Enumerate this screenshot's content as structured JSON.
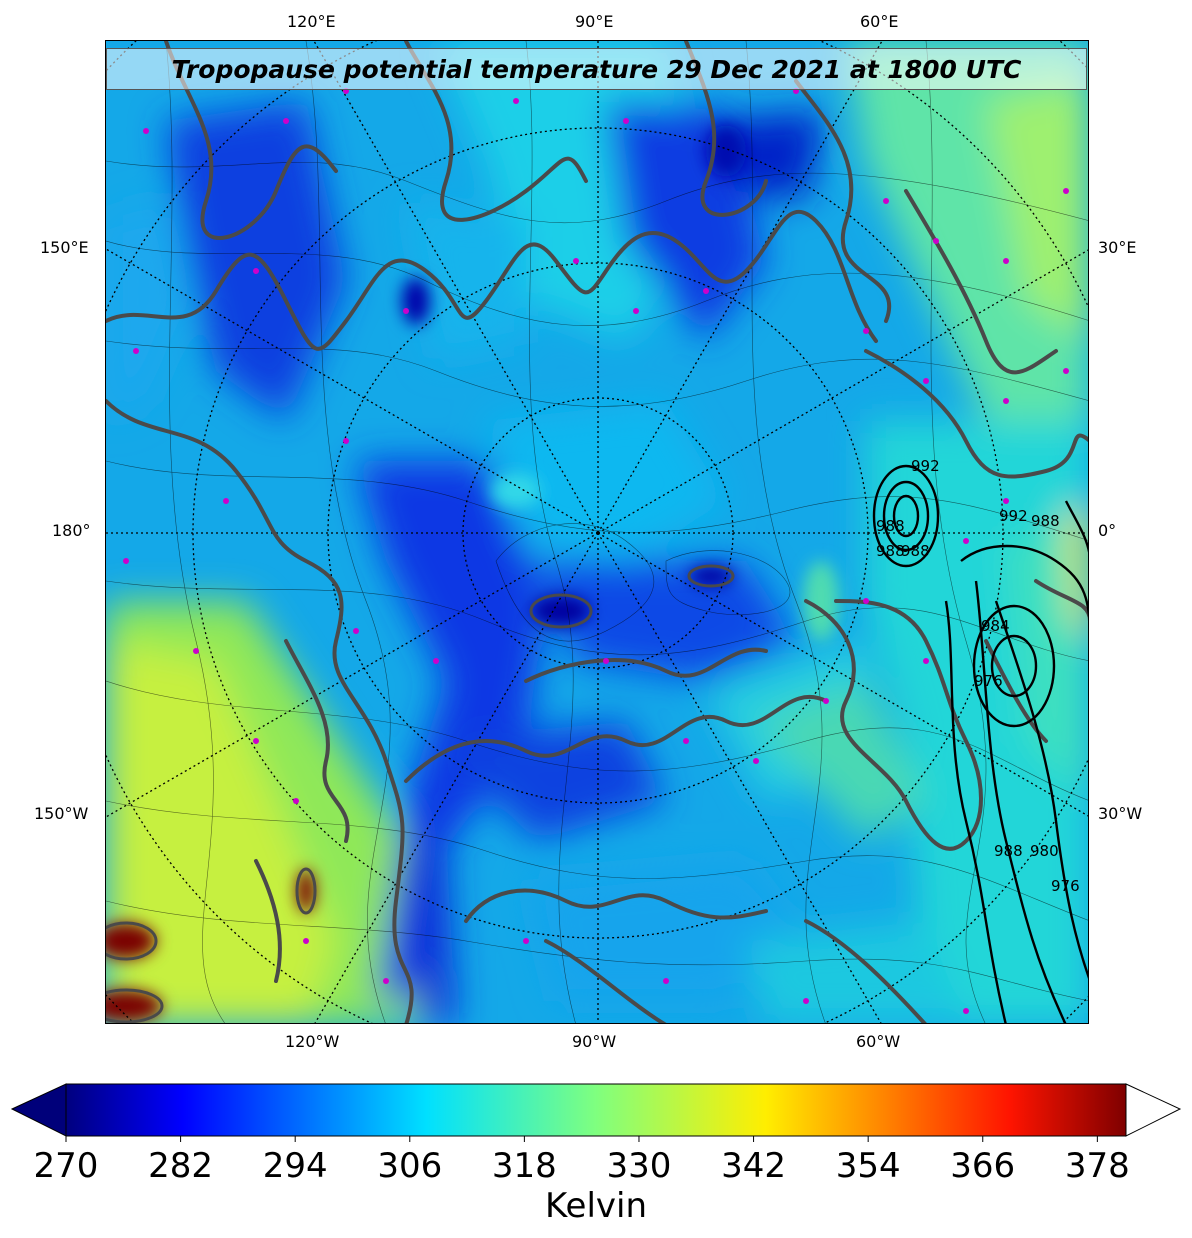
{
  "title": "Tropopause potential temperature 29 Dec 2021 at 1800 UTC",
  "graticule_labels": {
    "top": [
      "120°E",
      "90°E",
      "60°E"
    ],
    "bottom": [
      "120°W",
      "90°W",
      "60°W"
    ],
    "left": [
      "150°E",
      "180°",
      "150°W"
    ],
    "right": [
      "30°E",
      "0°",
      "30°W"
    ]
  },
  "pressure_contour_labels": [
    "992",
    "988",
    "988",
    "988",
    "992",
    "988",
    "984",
    "976",
    "988",
    "980",
    "976"
  ],
  "colorbar": {
    "label": "Kelvin",
    "ticks": [
      "270",
      "282",
      "294",
      "306",
      "318",
      "330",
      "342",
      "354",
      "366",
      "378"
    ],
    "min": 270,
    "max": 381,
    "extend": "both",
    "colormap": "jet",
    "over_color": "#ffffff"
  },
  "colors": {
    "cold": "#0000aa",
    "mid": "#00e5ff",
    "warm": "#b7ff40",
    "hot": "#8b0000",
    "coastline": "#4a4a4a",
    "station_marker": "#cc00cc"
  }
}
